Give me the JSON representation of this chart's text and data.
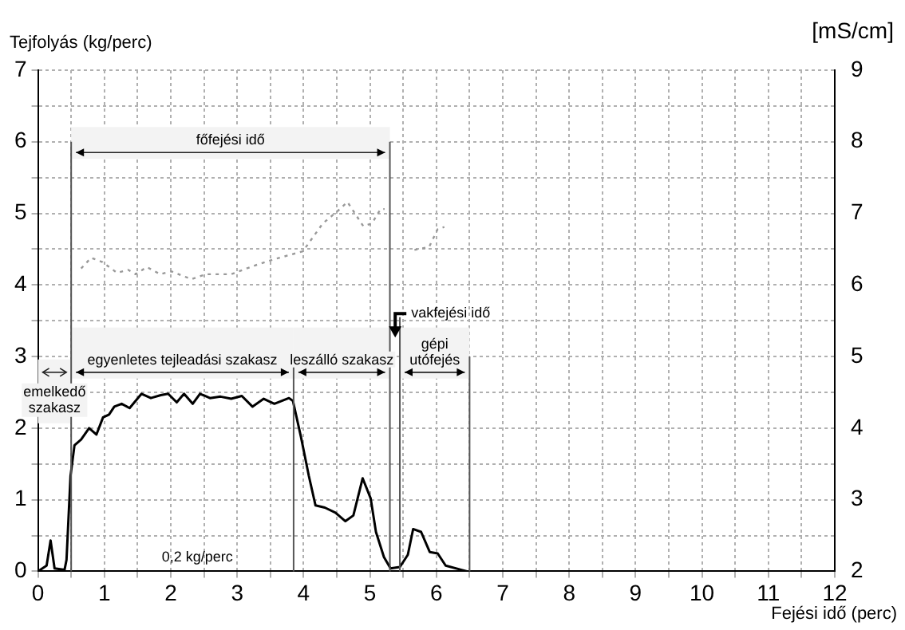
{
  "chart_data": {
    "type": "line",
    "xlabel": "Fejési idő (perc)",
    "ylabel": "Tejfolyás (kg/perc)",
    "y2label": "[mS/cm]",
    "xlim": [
      0,
      12
    ],
    "xticks": [
      0,
      {
        "value": 0.5,
        "label": null
      },
      1,
      {
        "value": 1.5,
        "label": null
      },
      2,
      {
        "value": 2.5,
        "label": null
      },
      3,
      {
        "value": 3.5,
        "label": null
      },
      4,
      {
        "value": 4.5,
        "label": null
      },
      5,
      {
        "value": 5.5,
        "label": null
      },
      6,
      {
        "value": 6.5,
        "label": null
      },
      7,
      {
        "value": 7.5,
        "label": null
      },
      8,
      {
        "value": 8.5,
        "label": null
      },
      9,
      {
        "value": 9.5,
        "label": null
      },
      10,
      {
        "value": 10.5,
        "label": null
      },
      11,
      {
        "value": 11.5,
        "label": null
      },
      12
    ],
    "ylim": [
      0,
      7
    ],
    "yticks": [
      0,
      {
        "value": 0.5,
        "label": null
      },
      1,
      {
        "value": 1.5,
        "label": null
      },
      2,
      {
        "value": 2.5,
        "label": null
      },
      3,
      {
        "value": 3.5,
        "label": null
      },
      4,
      {
        "value": 4.5,
        "label": null
      },
      5,
      {
        "value": 5.5,
        "label": null
      },
      6,
      {
        "value": 6.5,
        "label": null
      },
      7
    ],
    "y2lim": [
      2,
      9
    ],
    "y2ticks": [
      2,
      3,
      4,
      5,
      6,
      7,
      8,
      9
    ],
    "grid": true,
    "marker": "none",
    "series": [
      {
        "color": "#000000",
        "line_style": "solid",
        "x": [
          0,
          0.13,
          0.19,
          0.25,
          0.4,
          0.43,
          0.49,
          0.55,
          0.65,
          0.77,
          0.88,
          0.98,
          1.07,
          1.15,
          1.26,
          1.38,
          1.56,
          1.7,
          1.85,
          1.96,
          2.09,
          2.2,
          2.33,
          2.44,
          2.59,
          2.75,
          2.91,
          3.07,
          3.23,
          3.4,
          3.56,
          3.78,
          3.84,
          3.96,
          4.08,
          4.18,
          4.32,
          4.48,
          4.63,
          4.75,
          4.89,
          5.01,
          5.09,
          5.21,
          5.31,
          5.45,
          5.57,
          5.65,
          5.77,
          5.9,
          6.02,
          6.14,
          6.38,
          6.46
        ],
        "values": [
          0,
          0.08,
          0.43,
          0.04,
          0.02,
          0.16,
          1.33,
          1.76,
          1.84,
          2.0,
          1.91,
          2.15,
          2.19,
          2.3,
          2.34,
          2.28,
          2.48,
          2.42,
          2.46,
          2.48,
          2.36,
          2.48,
          2.34,
          2.48,
          2.42,
          2.44,
          2.41,
          2.45,
          2.3,
          2.41,
          2.34,
          2.42,
          2.38,
          1.88,
          1.33,
          0.92,
          0.89,
          0.82,
          0.7,
          0.78,
          1.3,
          1.02,
          0.55,
          0.2,
          0.04,
          0.06,
          0.23,
          0.59,
          0.55,
          0.27,
          0.25,
          0.08,
          0.02,
          0
        ]
      },
      {
        "color": "#999999",
        "line_style": "dotted",
        "axis": "y2",
        "x": [
          0.65,
          0.8,
          0.97,
          1.19,
          1.36,
          1.47,
          1.64,
          1.84,
          2.01,
          2.31,
          2.53,
          2.91,
          3.26,
          3.56,
          3.99,
          4.29,
          4.51,
          4.66,
          4.9,
          5.03,
          5.16,
          5.22,
          5.45,
          5.67,
          5.89,
          6.02,
          6.12
        ],
        "values": [
          6.23,
          6.38,
          6.32,
          6.17,
          6.21,
          6.15,
          6.25,
          6.15,
          6.19,
          6.08,
          6.15,
          6.15,
          6.27,
          6.36,
          6.47,
          6.86,
          7.03,
          7.16,
          6.82,
          6.86,
          7.06,
          7.06,
          null,
          6.49,
          6.53,
          6.78,
          6.81
        ]
      }
    ],
    "ref_lines": [
      {
        "axis": "x",
        "value": 0.5
      },
      {
        "axis": "x",
        "value": 3.85
      },
      {
        "axis": "x",
        "value": 5.3
      },
      {
        "axis": "x",
        "value": 5.45
      },
      {
        "axis": "x",
        "value": 6.5
      }
    ],
    "bands": [
      {
        "axis": "x",
        "from": 0.5,
        "to": 5.3,
        "label": "főfejési idő",
        "color": "#f3f3f3"
      },
      {
        "axis": "x",
        "from": 0,
        "to": 0.5,
        "label": "emelkedő szakasz",
        "color": "#f3f3f3"
      },
      {
        "axis": "x",
        "from": 0.5,
        "to": 3.85,
        "label": "egyenletes tejleadási szakasz",
        "color": "#f3f3f3"
      },
      {
        "axis": "x",
        "from": 3.85,
        "to": 5.3,
        "label": "leszálló szakasz",
        "color": "#f3f3f3"
      },
      {
        "axis": "x",
        "from": 5.45,
        "to": 6.5,
        "label": "gépi utófejés",
        "color": "#f3f3f3"
      }
    ],
    "annotations": [
      {
        "text": "vakfejési idő",
        "x": 5.38,
        "y": 3.6
      },
      "0,2 kg/perc"
    ]
  }
}
